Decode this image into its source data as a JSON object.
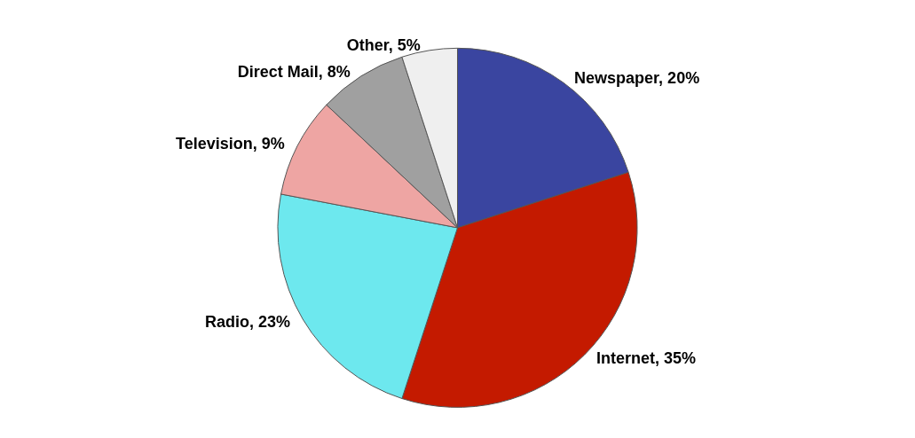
{
  "chart_data": {
    "type": "pie",
    "categories": [
      "Newspaper",
      "Internet",
      "Radio",
      "Television",
      "Direct Mail",
      "Other"
    ],
    "values": [
      20,
      35,
      23,
      9,
      8,
      5
    ],
    "value_labels": [
      "20%",
      "35%",
      "23%",
      "9%",
      "8%",
      "5%"
    ],
    "colors": [
      "#3a45a0",
      "#c41a00",
      "#6de8ee",
      "#eea5a3",
      "#a0a0a0",
      "#efefef"
    ],
    "legend": false
  }
}
